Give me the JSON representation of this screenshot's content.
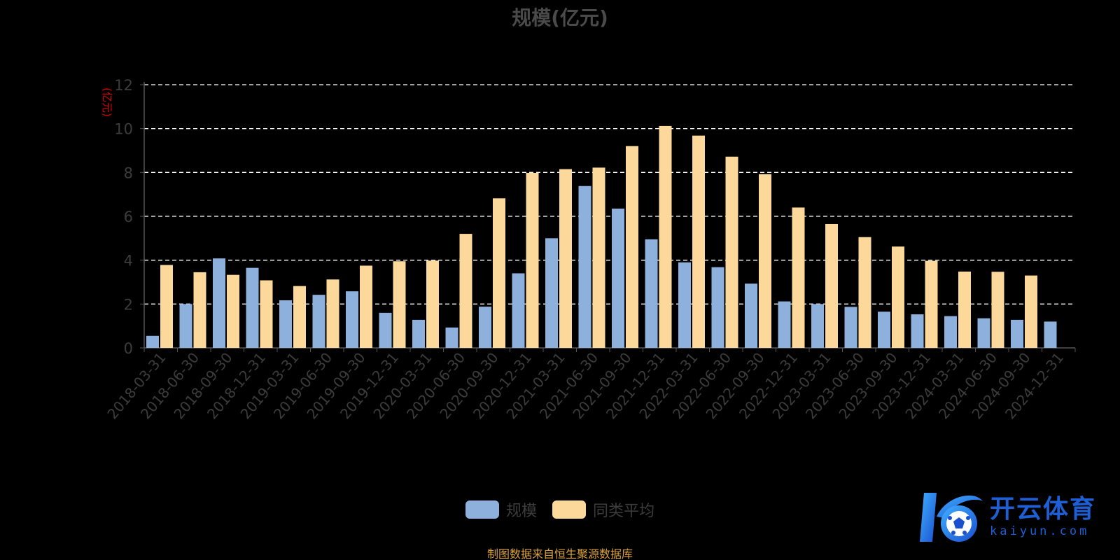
{
  "chart_data": {
    "type": "bar",
    "title": "规模(亿元)",
    "ylabel": "(亿元)",
    "xlabel": "",
    "ylim": [
      0,
      12
    ],
    "yticks": [
      0,
      2,
      4,
      6,
      8,
      10,
      12
    ],
    "grid": true,
    "legend_position": "bottom",
    "categories": [
      "2018-03-31",
      "2018-06-30",
      "2018-09-30",
      "2018-12-31",
      "2019-03-31",
      "2019-06-30",
      "2019-09-30",
      "2019-12-31",
      "2020-03-31",
      "2020-06-30",
      "2020-09-30",
      "2020-12-31",
      "2021-03-31",
      "2021-06-30",
      "2021-09-30",
      "2021-12-31",
      "2022-03-31",
      "2022-06-30",
      "2022-09-30",
      "2022-12-31",
      "2023-03-31",
      "2023-06-30",
      "2023-09-30",
      "2023-12-31",
      "2024-03-31",
      "2024-06-30",
      "2024-09-30",
      "2024-12-31"
    ],
    "series": [
      {
        "name": "规模",
        "color": "#8eb0dd",
        "values": [
          0.55,
          2.0,
          4.08,
          3.65,
          2.17,
          2.42,
          2.58,
          1.6,
          1.28,
          0.93,
          1.88,
          3.4,
          5.0,
          7.38,
          6.35,
          4.95,
          3.9,
          3.68,
          2.93,
          2.12,
          2.0,
          1.87,
          1.65,
          1.53,
          1.45,
          1.35,
          1.28,
          1.2
        ]
      },
      {
        "name": "同类平均",
        "color": "#fcd99a",
        "values": [
          3.78,
          3.45,
          3.33,
          3.08,
          2.82,
          3.12,
          3.75,
          3.95,
          3.98,
          5.2,
          6.82,
          7.98,
          8.15,
          8.22,
          9.2,
          10.12,
          9.68,
          8.72,
          7.92,
          6.4,
          5.65,
          5.05,
          4.62,
          3.97,
          3.48,
          3.47,
          3.3,
          null
        ]
      }
    ]
  },
  "source_note": "制图数据来自恒生聚源数据库",
  "watermark": {
    "name_cn": "开云体育",
    "name_en": "kaiyun.com"
  },
  "colors": {
    "background": "#000000",
    "axis": "#555555",
    "grid": "#ffffff",
    "tick_text": "#3c3c3c",
    "ylabel": "#e00000",
    "source_note": "#d9a13a",
    "watermark": "#1e5fd6"
  }
}
